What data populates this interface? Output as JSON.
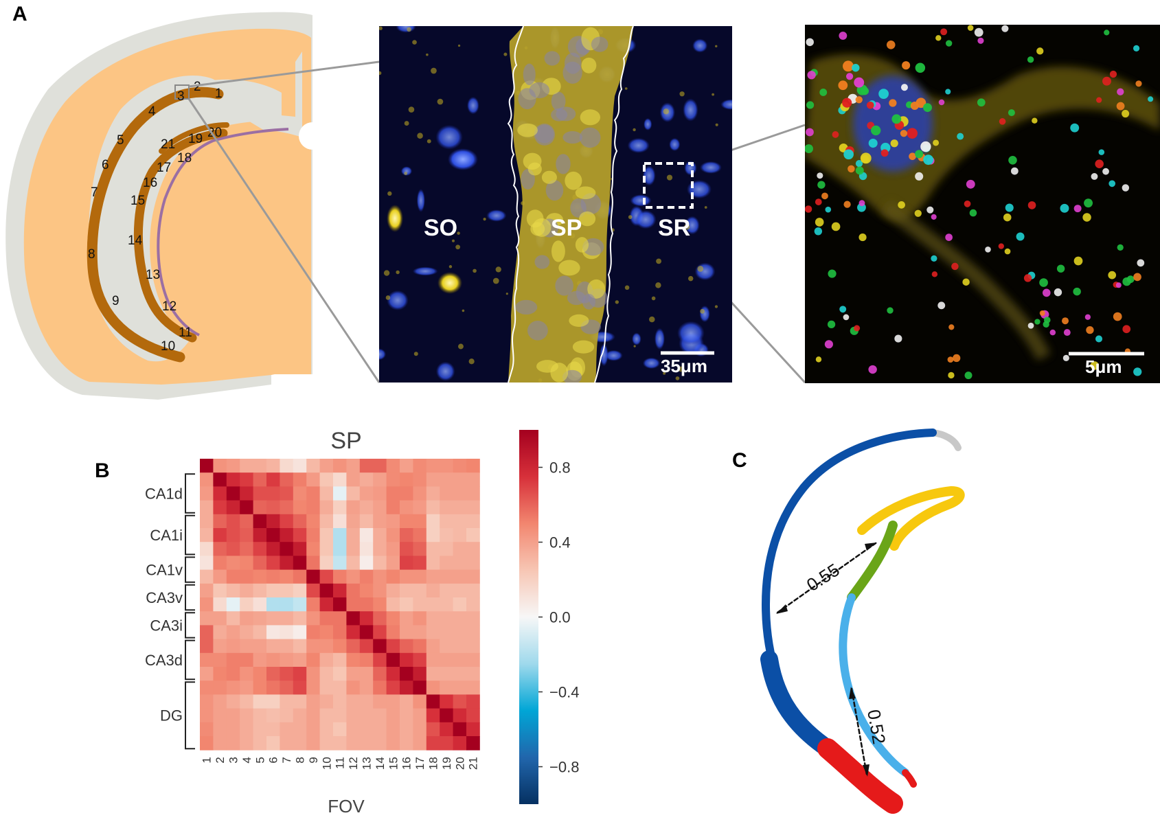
{
  "panels": {
    "a_letter": "A",
    "b_letter": "B",
    "c_letter": "C"
  },
  "panel_a": {
    "fov_labels": [
      "1",
      "2",
      "3",
      "4",
      "5",
      "6",
      "7",
      "8",
      "9",
      "10",
      "11",
      "12",
      "13",
      "14",
      "15",
      "16",
      "17",
      "18",
      "19",
      "20",
      "21"
    ],
    "region_labels": [
      "SO",
      "SP",
      "SR"
    ],
    "scale_bar_1": "35μm",
    "scale_bar_2": "5μm",
    "colors": {
      "brain": "#fcc584",
      "white_matter": "#dfe0da",
      "cell_layer": "#b3690c",
      "membrane": "#9b6fa3"
    }
  },
  "chart_data": {
    "type": "heatmap",
    "title": "SP",
    "xlabel": "FOV",
    "x_categories": [
      "1",
      "2",
      "3",
      "4",
      "5",
      "6",
      "7",
      "8",
      "9",
      "10",
      "11",
      "12",
      "13",
      "14",
      "15",
      "16",
      "17",
      "18",
      "19",
      "20",
      "21"
    ],
    "y_groups": [
      {
        "label": "CA1d",
        "fovs": [
          2,
          4
        ]
      },
      {
        "label": "CA1i",
        "fovs": [
          5,
          7
        ]
      },
      {
        "label": "CA1v",
        "fovs": [
          8,
          9
        ]
      },
      {
        "label": "CA3v",
        "fovs": [
          10,
          11
        ]
      },
      {
        "label": "CA3i",
        "fovs": [
          12,
          13
        ]
      },
      {
        "label": "CA3d",
        "fovs": [
          14,
          16
        ]
      },
      {
        "label": "DG",
        "fovs": [
          17,
          21
        ]
      }
    ],
    "colorbar": {
      "range": [
        -1,
        1
      ],
      "ticks": [
        "0.8",
        "0.4",
        "0.0",
        "−0.4",
        "−0.8"
      ],
      "colormap": "RdBu_r"
    },
    "matrix": [
      [
        1.0,
        0.45,
        0.42,
        0.35,
        0.35,
        0.32,
        0.15,
        0.1,
        0.3,
        0.4,
        0.45,
        0.4,
        0.6,
        0.6,
        0.48,
        0.4,
        0.48,
        0.45,
        0.45,
        0.48,
        0.5
      ],
      [
        0.45,
        1.0,
        0.78,
        0.72,
        0.6,
        0.72,
        0.6,
        0.52,
        0.42,
        0.25,
        0.15,
        0.4,
        0.35,
        0.4,
        0.48,
        0.5,
        0.48,
        0.4,
        0.4,
        0.4,
        0.4
      ],
      [
        0.42,
        0.78,
        1.0,
        0.82,
        0.66,
        0.66,
        0.64,
        0.48,
        0.52,
        0.3,
        -0.05,
        0.3,
        0.4,
        0.42,
        0.52,
        0.52,
        0.45,
        0.35,
        0.4,
        0.4,
        0.4
      ],
      [
        0.35,
        0.72,
        0.82,
        1.0,
        0.6,
        0.62,
        0.58,
        0.5,
        0.52,
        0.35,
        0.2,
        0.4,
        0.35,
        0.4,
        0.52,
        0.45,
        0.42,
        0.3,
        0.35,
        0.35,
        0.35
      ],
      [
        0.35,
        0.6,
        0.66,
        0.6,
        1.0,
        0.85,
        0.7,
        0.6,
        0.5,
        0.3,
        0.12,
        0.38,
        0.3,
        0.4,
        0.42,
        0.5,
        0.5,
        0.2,
        0.3,
        0.3,
        0.3
      ],
      [
        0.32,
        0.72,
        0.66,
        0.62,
        0.85,
        1.0,
        0.85,
        0.7,
        0.52,
        0.25,
        -0.2,
        0.35,
        0.08,
        0.35,
        0.45,
        0.6,
        0.55,
        0.2,
        0.28,
        0.3,
        0.25
      ],
      [
        0.15,
        0.6,
        0.64,
        0.58,
        0.7,
        0.85,
        1.0,
        0.85,
        0.5,
        0.25,
        -0.2,
        0.35,
        0.1,
        0.35,
        0.42,
        0.65,
        0.6,
        0.3,
        0.3,
        0.35,
        0.35
      ],
      [
        0.1,
        0.52,
        0.48,
        0.5,
        0.6,
        0.7,
        0.85,
        1.0,
        0.55,
        0.2,
        -0.15,
        0.3,
        0.05,
        0.3,
        0.4,
        0.7,
        0.68,
        0.3,
        0.35,
        0.35,
        0.35
      ],
      [
        0.3,
        0.42,
        0.52,
        0.52,
        0.5,
        0.52,
        0.5,
        0.55,
        1.0,
        0.68,
        0.52,
        0.45,
        0.52,
        0.45,
        0.5,
        0.45,
        0.45,
        0.4,
        0.4,
        0.4,
        0.4
      ],
      [
        0.4,
        0.25,
        0.3,
        0.35,
        0.3,
        0.25,
        0.25,
        0.2,
        0.68,
        1.0,
        0.8,
        0.55,
        0.5,
        0.45,
        0.35,
        0.3,
        0.3,
        0.35,
        0.3,
        0.3,
        0.3
      ],
      [
        0.45,
        0.15,
        -0.05,
        0.2,
        0.12,
        -0.2,
        -0.2,
        -0.15,
        0.52,
        0.8,
        1.0,
        0.55,
        0.55,
        0.5,
        0.3,
        0.25,
        0.3,
        0.3,
        0.3,
        0.25,
        0.3
      ],
      [
        0.4,
        0.4,
        0.3,
        0.4,
        0.38,
        0.35,
        0.35,
        0.3,
        0.45,
        0.55,
        0.55,
        1.0,
        0.78,
        0.6,
        0.5,
        0.4,
        0.45,
        0.35,
        0.35,
        0.35,
        0.35
      ],
      [
        0.6,
        0.35,
        0.4,
        0.35,
        0.3,
        0.08,
        0.1,
        0.05,
        0.52,
        0.5,
        0.55,
        0.78,
        1.0,
        0.7,
        0.52,
        0.4,
        0.4,
        0.35,
        0.35,
        0.35,
        0.35
      ],
      [
        0.6,
        0.4,
        0.42,
        0.4,
        0.4,
        0.35,
        0.35,
        0.3,
        0.45,
        0.45,
        0.5,
        0.6,
        0.7,
        1.0,
        0.7,
        0.6,
        0.55,
        0.4,
        0.35,
        0.35,
        0.35
      ],
      [
        0.48,
        0.48,
        0.52,
        0.52,
        0.42,
        0.45,
        0.42,
        0.4,
        0.5,
        0.35,
        0.3,
        0.5,
        0.52,
        0.7,
        1.0,
        0.78,
        0.7,
        0.4,
        0.4,
        0.4,
        0.4
      ],
      [
        0.4,
        0.5,
        0.52,
        0.45,
        0.5,
        0.6,
        0.65,
        0.7,
        0.45,
        0.3,
        0.25,
        0.4,
        0.4,
        0.6,
        0.78,
        1.0,
        0.85,
        0.35,
        0.35,
        0.35,
        0.35
      ],
      [
        0.48,
        0.48,
        0.45,
        0.42,
        0.5,
        0.55,
        0.6,
        0.68,
        0.45,
        0.3,
        0.3,
        0.45,
        0.4,
        0.55,
        0.7,
        0.85,
        1.0,
        0.45,
        0.4,
        0.4,
        0.4
      ],
      [
        0.45,
        0.4,
        0.35,
        0.3,
        0.2,
        0.2,
        0.3,
        0.3,
        0.4,
        0.35,
        0.3,
        0.35,
        0.35,
        0.4,
        0.4,
        0.35,
        0.45,
        1.0,
        0.75,
        0.65,
        0.7
      ],
      [
        0.45,
        0.4,
        0.4,
        0.35,
        0.3,
        0.28,
        0.3,
        0.35,
        0.4,
        0.3,
        0.3,
        0.35,
        0.35,
        0.35,
        0.4,
        0.35,
        0.4,
        0.75,
        1.0,
        0.78,
        0.7
      ],
      [
        0.48,
        0.4,
        0.4,
        0.35,
        0.3,
        0.3,
        0.35,
        0.35,
        0.4,
        0.3,
        0.25,
        0.35,
        0.35,
        0.35,
        0.4,
        0.35,
        0.4,
        0.65,
        0.78,
        1.0,
        0.78
      ],
      [
        0.5,
        0.4,
        0.4,
        0.35,
        0.3,
        0.25,
        0.35,
        0.35,
        0.4,
        0.3,
        0.3,
        0.35,
        0.35,
        0.35,
        0.4,
        0.35,
        0.4,
        0.7,
        0.7,
        0.78,
        1.0
      ]
    ]
  },
  "panel_c": {
    "distance_1": "0.55",
    "distance_2": "0.52",
    "colors": {
      "ca1": "#0b4fa6",
      "ca1_tip": "#c8c8c8",
      "ca3": "#4ab0ea",
      "ca3_tip": "#e51a1a",
      "dg_top": "#f7c80e",
      "dg_mid": "#6aa518",
      "base": "#e51a1a"
    }
  }
}
